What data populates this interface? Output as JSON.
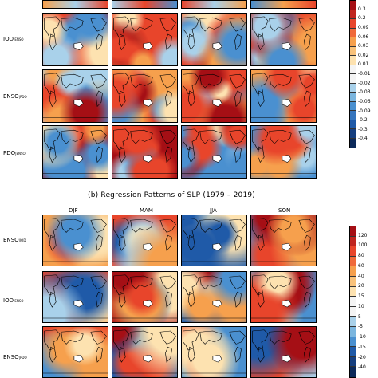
{
  "panel_a": {
    "rows": [
      {
        "main": "IOD",
        "sub": "ENSO"
      },
      {
        "main": "ENSO",
        "sub": "PDO"
      },
      {
        "main": "PDO",
        "sub": "ENSO"
      }
    ],
    "colorbar_ticks": [
      "0.3",
      "0.2",
      "0.09",
      "0.06",
      "0.03",
      "0.02",
      "0.01",
      "-0.01",
      "-0.02",
      "-0.03",
      "-0.06",
      "-0.09",
      "-0.2",
      "-0.3",
      "-0.4"
    ]
  },
  "panel_b": {
    "title": "(b) Regression Patterns of SLP (1979 – 2019)",
    "seasons": [
      "DJF",
      "MAM",
      "JJA",
      "SON"
    ],
    "rows": [
      {
        "main": "ENSO",
        "sub": "IOD"
      },
      {
        "main": "IOD",
        "sub": "ENSO"
      },
      {
        "main": "ENSO",
        "sub": "PDO"
      }
    ],
    "colorbar_ticks": [
      "120",
      "100",
      "80",
      "60",
      "40",
      "20",
      "15",
      "10",
      "5",
      "-5",
      "-10",
      "-15",
      "-20",
      "-40"
    ]
  },
  "colors": {
    "dark_red": "#a50f15",
    "red": "#e8452b",
    "orange": "#f6a04d",
    "light": "#fde2b0",
    "white": "#f4f4f4",
    "light_blue": "#a9d1ea",
    "blue": "#4a90d0",
    "dark_blue": "#1f5aa8"
  }
}
